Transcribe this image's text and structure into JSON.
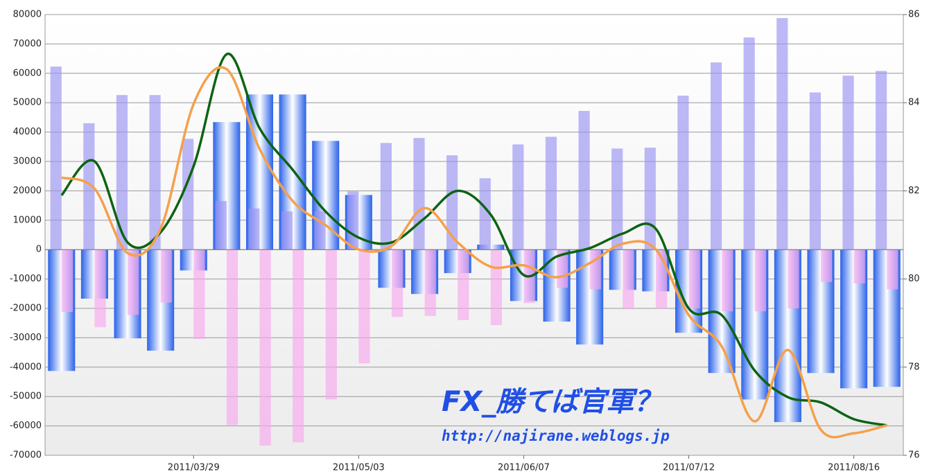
{
  "chart_data": {
    "type": "bar",
    "categories": [
      null,
      null,
      null,
      null,
      "2011/03/29",
      null,
      null,
      null,
      null,
      "2011/05/03",
      null,
      null,
      null,
      null,
      "2011/06/07",
      null,
      null,
      null,
      null,
      "2011/07/12",
      null,
      null,
      null,
      null,
      "2011/08/16",
      null
    ],
    "ylim": [
      -70000,
      80000
    ],
    "yticks": [
      -70000,
      -60000,
      -50000,
      -40000,
      -30000,
      -20000,
      -10000,
      0,
      10000,
      20000,
      30000,
      40000,
      50000,
      60000,
      70000,
      80000
    ],
    "y2lim": [
      76,
      86
    ],
    "y2ticks": [
      76,
      78,
      80,
      82,
      84,
      86
    ],
    "grid": true,
    "series": [
      {
        "type": "bar",
        "color": "#2a62ea",
        "values": [
          -41300,
          -16700,
          -30200,
          -34400,
          -7100,
          43400,
          52800,
          52800,
          37000,
          18600,
          -13000,
          -15100,
          -8000,
          1700,
          -17500,
          -24500,
          -32300,
          -13700,
          -14200,
          -28300,
          -42000,
          -51000,
          -58700,
          -42000,
          -47200,
          -46700
        ]
      },
      {
        "type": "bar",
        "color": "#9a93f2",
        "values": [
          62300,
          43000,
          52600,
          52600,
          37700,
          16500,
          14000,
          13000,
          13000,
          19800,
          36300,
          38000,
          32100,
          24300,
          35800,
          38400,
          47200,
          34400,
          34700,
          52400,
          63700,
          72200,
          78800,
          53500,
          59200,
          60800
        ]
      },
      {
        "type": "bar",
        "color": "#f7a8ee",
        "values": [
          -21200,
          -26400,
          -22200,
          -18000,
          -30400,
          -59700,
          -66700,
          -65600,
          -51000,
          -38700,
          -22900,
          -22600,
          -24000,
          -25700,
          -18200,
          -13000,
          -13500,
          -20300,
          -20000,
          -20000,
          -21000,
          -21000,
          -20000,
          -11000,
          -11500,
          -13500
        ]
      },
      {
        "type": "line",
        "axis": "y2",
        "color": "#0d6312",
        "values": [
          81.9,
          82.67,
          80.83,
          81.06,
          82.56,
          85.1,
          83.42,
          82.48,
          81.53,
          80.94,
          80.83,
          81.38,
          82.0,
          81.46,
          80.09,
          80.51,
          80.7,
          81.03,
          81.14,
          79.33,
          79.18,
          77.92,
          77.32,
          77.2,
          76.82,
          76.68
        ]
      },
      {
        "type": "line",
        "axis": "y2",
        "color": "#f5a04a",
        "values": [
          82.3,
          82.05,
          80.59,
          81.14,
          83.97,
          84.76,
          82.95,
          81.77,
          81.22,
          80.67,
          80.75,
          81.61,
          80.83,
          80.28,
          80.31,
          80.04,
          80.36,
          80.8,
          80.67,
          79.18,
          78.47,
          76.77,
          78.39,
          76.58,
          76.5,
          76.68
        ]
      }
    ],
    "annotations": [
      "FX_勝てば官軍？",
      "http://najirane.weblogs.jp"
    ]
  }
}
